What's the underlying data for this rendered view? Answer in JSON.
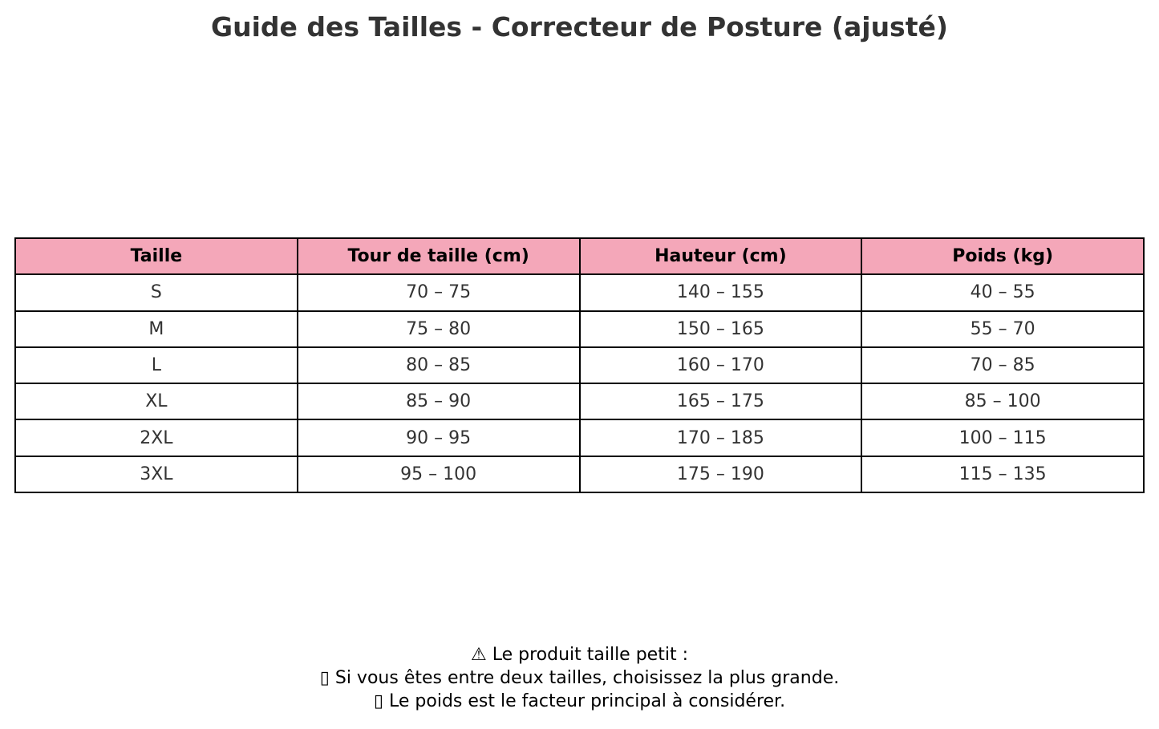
{
  "title": "Guide des Tailles - Correcteur de Posture (ajusté)",
  "colors": {
    "header_bg": "#f4a7b9",
    "border": "#000000",
    "text": "#333333"
  },
  "chart_data": {
    "type": "table",
    "title": "Guide des Tailles - Correcteur de Posture (ajusté)",
    "columns": [
      "Taille",
      "Tour de taille (cm)",
      "Hauteur (cm)",
      "Poids (kg)"
    ],
    "rows": [
      [
        "S",
        "70 – 75",
        "140 – 155",
        "40 – 55"
      ],
      [
        "M",
        "75 – 80",
        "150 – 165",
        "55 – 70"
      ],
      [
        "L",
        "80 – 85",
        "160 – 170",
        "70 – 85"
      ],
      [
        "XL",
        "85 – 90",
        "165 – 175",
        "85 – 100"
      ],
      [
        "2XL",
        "90 – 95",
        "170 – 185",
        "100 – 115"
      ],
      [
        "3XL",
        "95 – 100",
        "175 – 190",
        "115 – 135"
      ]
    ]
  },
  "notes": [
    "⚠ Le produit taille petit :",
    "▯ Si vous êtes entre deux tailles, choisissez la plus grande.",
    "▯ Le poids est le facteur principal à considérer."
  ]
}
